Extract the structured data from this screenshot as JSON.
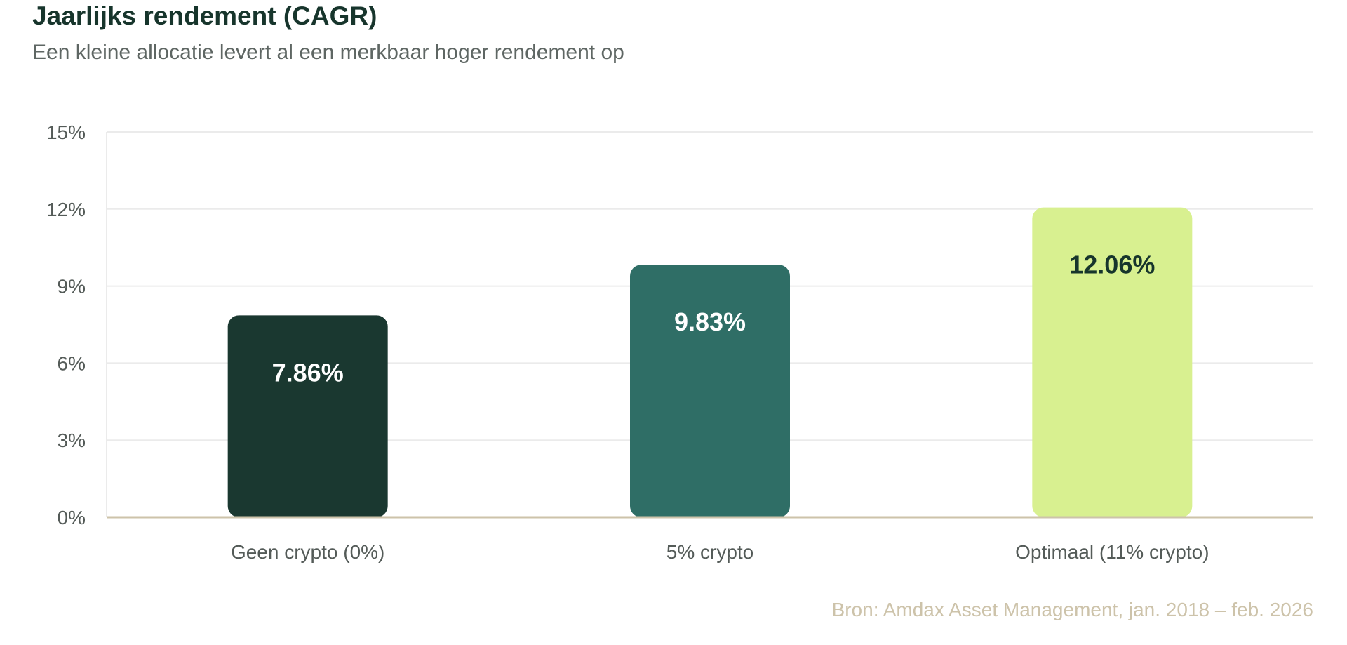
{
  "header": {
    "title": "Jaarlijks rendement (CAGR)",
    "subtitle": "Een kleine allocatie levert al een merkbaar hoger rendement op"
  },
  "footer": {
    "source": "Bron: Amdax Asset Management, jan. 2018 – feb. 2026"
  },
  "chart_data": {
    "type": "bar",
    "categories": [
      "Geen crypto (0%)",
      "5% crypto",
      "Optimaal (11% crypto)"
    ],
    "values": [
      7.86,
      9.83,
      12.06
    ],
    "value_labels": [
      "7.86%",
      "9.83%",
      "12.06%"
    ],
    "ylim": [
      0,
      15
    ],
    "yticks": [
      0,
      3,
      6,
      9,
      12,
      15
    ],
    "ytick_labels": [
      "0%",
      "3%",
      "6%",
      "9%",
      "12%",
      "15%"
    ],
    "grid": true,
    "legend": "none",
    "colors": [
      "#1a3830",
      "#2f6e66",
      "#d8f090"
    ],
    "label_colors": [
      "#ffffff",
      "#ffffff",
      "#17352c"
    ],
    "gridline_color": "#ebebeb",
    "baseline_color": "#cdc3aa"
  }
}
